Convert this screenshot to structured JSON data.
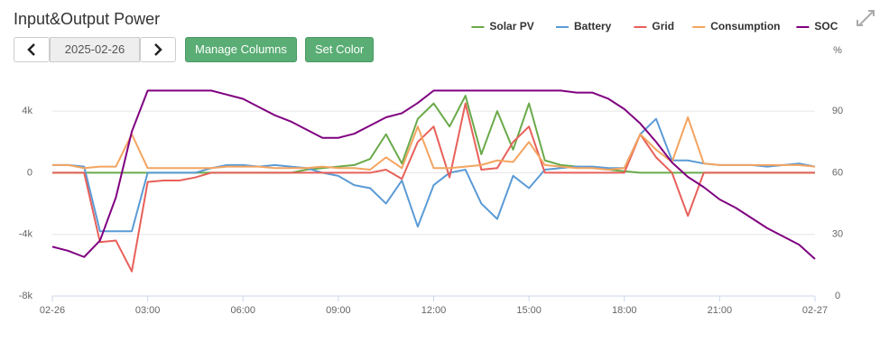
{
  "toolbar": {
    "date": "2025-02-26",
    "buttons": [
      "Manage Columns",
      "Set Color"
    ]
  },
  "chart_data": {
    "type": "line",
    "title": "Input&Output Power",
    "y2label": "%",
    "x": [
      0,
      0.5,
      1,
      1.5,
      2,
      2.5,
      3,
      3.5,
      4,
      4.5,
      5,
      5.5,
      6,
      6.5,
      7,
      7.5,
      8,
      8.5,
      9,
      9.5,
      10,
      10.5,
      11,
      11.5,
      12,
      12.5,
      13,
      13.5,
      14,
      14.5,
      15,
      15.5,
      16,
      16.5,
      17,
      17.5,
      18,
      18.5,
      19,
      19.5,
      20,
      20.5,
      21,
      21.5,
      22,
      22.5,
      23,
      23.5,
      24
    ],
    "xlim": [
      0,
      24
    ],
    "xticks": [
      {
        "value": 0,
        "label": "02-26"
      },
      {
        "value": 3,
        "label": "03:00"
      },
      {
        "value": 6,
        "label": "06:00"
      },
      {
        "value": 9,
        "label": "09:00"
      },
      {
        "value": 12,
        "label": "12:00"
      },
      {
        "value": 15,
        "label": "15:00"
      },
      {
        "value": 18,
        "label": "18:00"
      },
      {
        "value": 21,
        "label": "21:00"
      },
      {
        "value": 24,
        "label": "02-27"
      }
    ],
    "ylim": [
      -8000,
      6000
    ],
    "yticks": [
      {
        "value": -8000,
        "label": "-8k"
      },
      {
        "value": -4000,
        "label": "-4k"
      },
      0,
      {
        "value": 4000,
        "label": "4k"
      }
    ],
    "y2lim": [
      0,
      105
    ],
    "y2ticks": [
      0,
      30,
      60,
      90
    ],
    "grid": true,
    "legend": "top-right",
    "series": [
      {
        "name": "Solar PV",
        "color": "#6aaa4a",
        "values": [
          0,
          0,
          0,
          0,
          0,
          0,
          0,
          0,
          0,
          0,
          0,
          0,
          0,
          0,
          0,
          0,
          200,
          300,
          400,
          500,
          900,
          2500,
          600,
          3500,
          4500,
          3000,
          5000,
          1200,
          4000,
          1500,
          4500,
          800,
          500,
          400,
          300,
          200,
          100,
          0,
          0,
          0,
          0,
          0,
          0,
          0,
          0,
          0,
          0,
          0,
          0
        ]
      },
      {
        "name": "Battery",
        "color": "#5b9bd5",
        "values": [
          500,
          500,
          400,
          -3800,
          -3800,
          -3800,
          0,
          0,
          0,
          0,
          300,
          500,
          500,
          400,
          500,
          400,
          300,
          0,
          -200,
          -800,
          -1000,
          -2000,
          -500,
          -3500,
          -800,
          0,
          200,
          -2000,
          -3000,
          -200,
          -1000,
          200,
          300,
          400,
          400,
          300,
          300,
          2500,
          3500,
          800,
          800,
          600,
          500,
          500,
          500,
          400,
          500,
          600,
          400
        ]
      },
      {
        "name": "Grid",
        "color": "#e8605a",
        "values": [
          0,
          0,
          0,
          -4500,
          -4400,
          -6400,
          -600,
          -500,
          -500,
          -300,
          0,
          0,
          0,
          0,
          0,
          0,
          0,
          0,
          0,
          0,
          0,
          200,
          -400,
          2000,
          3000,
          -300,
          4500,
          200,
          300,
          2000,
          3000,
          0,
          0,
          0,
          0,
          0,
          0,
          2500,
          1000,
          0,
          -2800,
          0,
          0,
          0,
          0,
          0,
          0,
          0,
          0
        ]
      },
      {
        "name": "Consumption",
        "color": "#f4a460",
        "values": [
          500,
          500,
          300,
          400,
          400,
          2500,
          300,
          300,
          300,
          300,
          300,
          400,
          400,
          400,
          300,
          300,
          300,
          400,
          300,
          300,
          200,
          1000,
          300,
          3000,
          300,
          300,
          400,
          500,
          800,
          700,
          2000,
          500,
          400,
          300,
          300,
          200,
          300,
          2500,
          1500,
          700,
          3600,
          600,
          500,
          500,
          500,
          500,
          500,
          500,
          400
        ]
      },
      {
        "name": "SOC",
        "color": "#800080",
        "axis": "y2",
        "values": [
          24,
          22,
          19,
          27,
          48,
          80,
          100,
          100,
          100,
          100,
          100,
          98,
          96,
          92,
          88,
          85,
          81,
          77,
          77,
          79,
          83,
          87,
          89,
          94,
          100,
          100,
          100,
          100,
          100,
          100,
          100,
          100,
          100,
          99,
          99,
          96,
          91,
          84,
          75,
          65,
          58,
          53,
          47,
          43,
          38,
          33,
          29,
          25,
          18
        ]
      }
    ]
  }
}
